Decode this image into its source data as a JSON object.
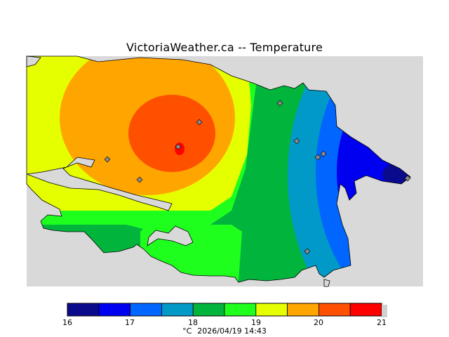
{
  "title": "VictoriaWeather.ca -- Temperature",
  "legend": {
    "unit": "°C",
    "ticks": [
      "16",
      "17",
      "18",
      "19",
      "20",
      "21"
    ],
    "bands": [
      {
        "from": 16.0,
        "to": 16.5,
        "color": "#0a0a8c"
      },
      {
        "from": 16.5,
        "to": 17.0,
        "color": "#0000f0"
      },
      {
        "from": 17.0,
        "to": 17.5,
        "color": "#0066ff"
      },
      {
        "from": 17.5,
        "to": 18.0,
        "color": "#0099c8"
      },
      {
        "from": 18.0,
        "to": 18.5,
        "color": "#00b43c"
      },
      {
        "from": 18.5,
        "to": 19.0,
        "color": "#1eff1e"
      },
      {
        "from": 19.0,
        "to": 19.5,
        "color": "#e6ff00"
      },
      {
        "from": 19.5,
        "to": 20.0,
        "color": "#ffa500"
      },
      {
        "from": 20.0,
        "to": 20.5,
        "color": "#ff5000"
      },
      {
        "from": 20.5,
        "to": 21.0,
        "color": "#ff0000"
      }
    ]
  },
  "timestamp": "2026/04/19 14:43",
  "colors": {
    "water": "#d9d9d9",
    "land_outline": "#000000",
    "station_marker": "#8a8a8a"
  }
}
